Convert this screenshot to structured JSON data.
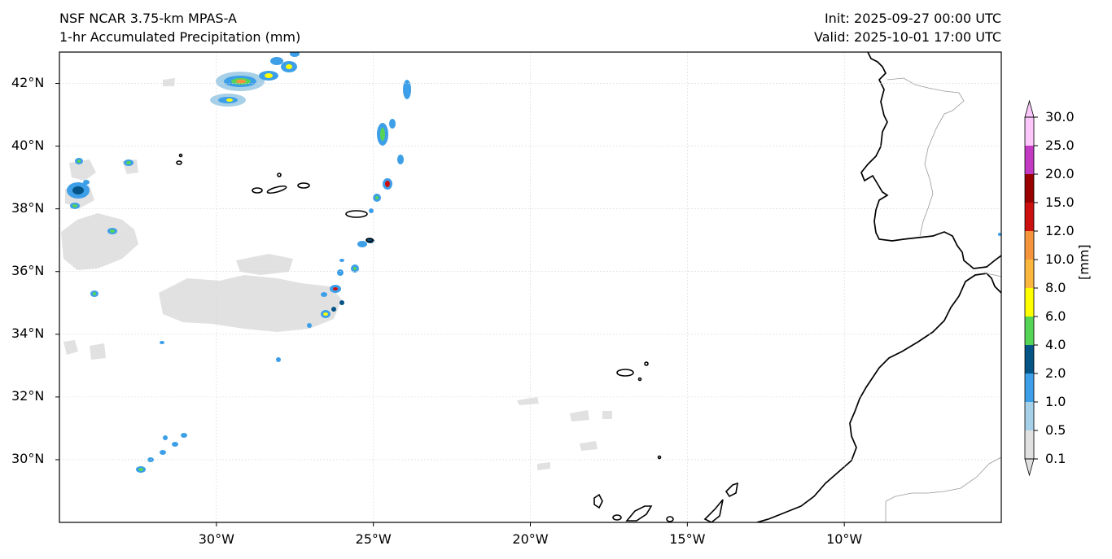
{
  "header": {
    "model_title": "NSF NCAR 3.75-km MPAS-A",
    "field_title": "1-hr Accumulated Precipitation (mm)",
    "init_time": "Init: 2025-09-27 00:00 UTC",
    "valid_time": "Valid: 2025-10-01 17:00 UTC"
  },
  "map": {
    "lat_labels": [
      "42°N",
      "40°N",
      "38°N",
      "36°N",
      "34°N",
      "32°N",
      "30°N"
    ],
    "lon_labels": [
      "30°W",
      "25°W",
      "20°W",
      "15°W",
      "10°W"
    ],
    "lat_values": [
      42,
      40,
      38,
      36,
      34,
      32,
      30
    ],
    "lon_values": [
      -30,
      -25,
      -20,
      -15,
      -10
    ],
    "extent": {
      "lon_min": -35,
      "lon_max": -5,
      "lat_min": 28,
      "lat_max": 43
    },
    "gridlines": true
  },
  "colorbar": {
    "unit_label": "[mm]",
    "levels": [
      "0.1",
      "0.5",
      "1.0",
      "2.0",
      "4.0",
      "6.0",
      "8.0",
      "10.0",
      "12.0",
      "15.0",
      "20.0",
      "25.0",
      "30.0"
    ],
    "colors": [
      "#e1e1e1",
      "#a6cfe8",
      "#3d9fe8",
      "#055486",
      "#55d455",
      "#ffff00",
      "#fbb73d",
      "#f4953d",
      "#cc1010",
      "#990000",
      "#c23ac2",
      "#fcc8fc"
    ],
    "extend": "both"
  }
}
